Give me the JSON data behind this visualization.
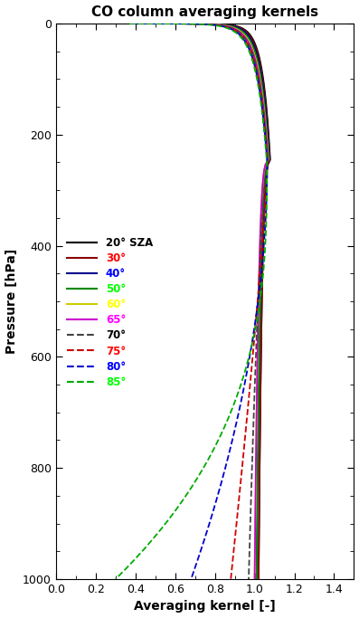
{
  "title": "CO column averaging kernels",
  "xlabel": "Averaging kernel [-]",
  "ylabel": "Pressure [hPa]",
  "xlim": [
    0.0,
    1.5
  ],
  "ylim": [
    0,
    1000
  ],
  "xticks": [
    0.0,
    0.2,
    0.4,
    0.6,
    0.8,
    1.0,
    1.2,
    1.4
  ],
  "yticks": [
    0,
    200,
    400,
    600,
    800,
    1000
  ],
  "background_color": "#ffffff",
  "series": [
    {
      "label": "20° SZA",
      "color": "#000000",
      "linestyle": "solid",
      "legend_color": "#000000",
      "sza": 20
    },
    {
      "label": "30°",
      "color": "#8b0000",
      "linestyle": "solid",
      "legend_color": "#ff0000",
      "sza": 30
    },
    {
      "label": "40°",
      "color": "#00008b",
      "linestyle": "solid",
      "legend_color": "#0000ff",
      "sza": 40
    },
    {
      "label": "50°",
      "color": "#008800",
      "linestyle": "solid",
      "legend_color": "#00ff00",
      "sza": 50
    },
    {
      "label": "60°",
      "color": "#cccc00",
      "linestyle": "solid",
      "legend_color": "#ffff00",
      "sza": 60
    },
    {
      "label": "65°",
      "color": "#cc00cc",
      "linestyle": "solid",
      "legend_color": "#ff00ff",
      "sza": 65
    },
    {
      "label": "70°",
      "color": "#444444",
      "linestyle": "dashed",
      "legend_color": "#000000",
      "sza": 70
    },
    {
      "label": "75°",
      "color": "#cc0000",
      "linestyle": "dashed",
      "legend_color": "#ff0000",
      "sza": 75
    },
    {
      "label": "80°",
      "color": "#0000cc",
      "linestyle": "dashed",
      "legend_color": "#0000ff",
      "sza": 80
    },
    {
      "label": "85°",
      "color": "#00aa00",
      "linestyle": "dashed",
      "legend_color": "#00ff00",
      "sza": 85
    }
  ],
  "legend_text_colors": [
    "#000000",
    "#ff0000",
    "#0000ff",
    "#00ff00",
    "#ffff00",
    "#ff00ff",
    "#000000",
    "#ff0000",
    "#0000ff",
    "#00ff00"
  ]
}
